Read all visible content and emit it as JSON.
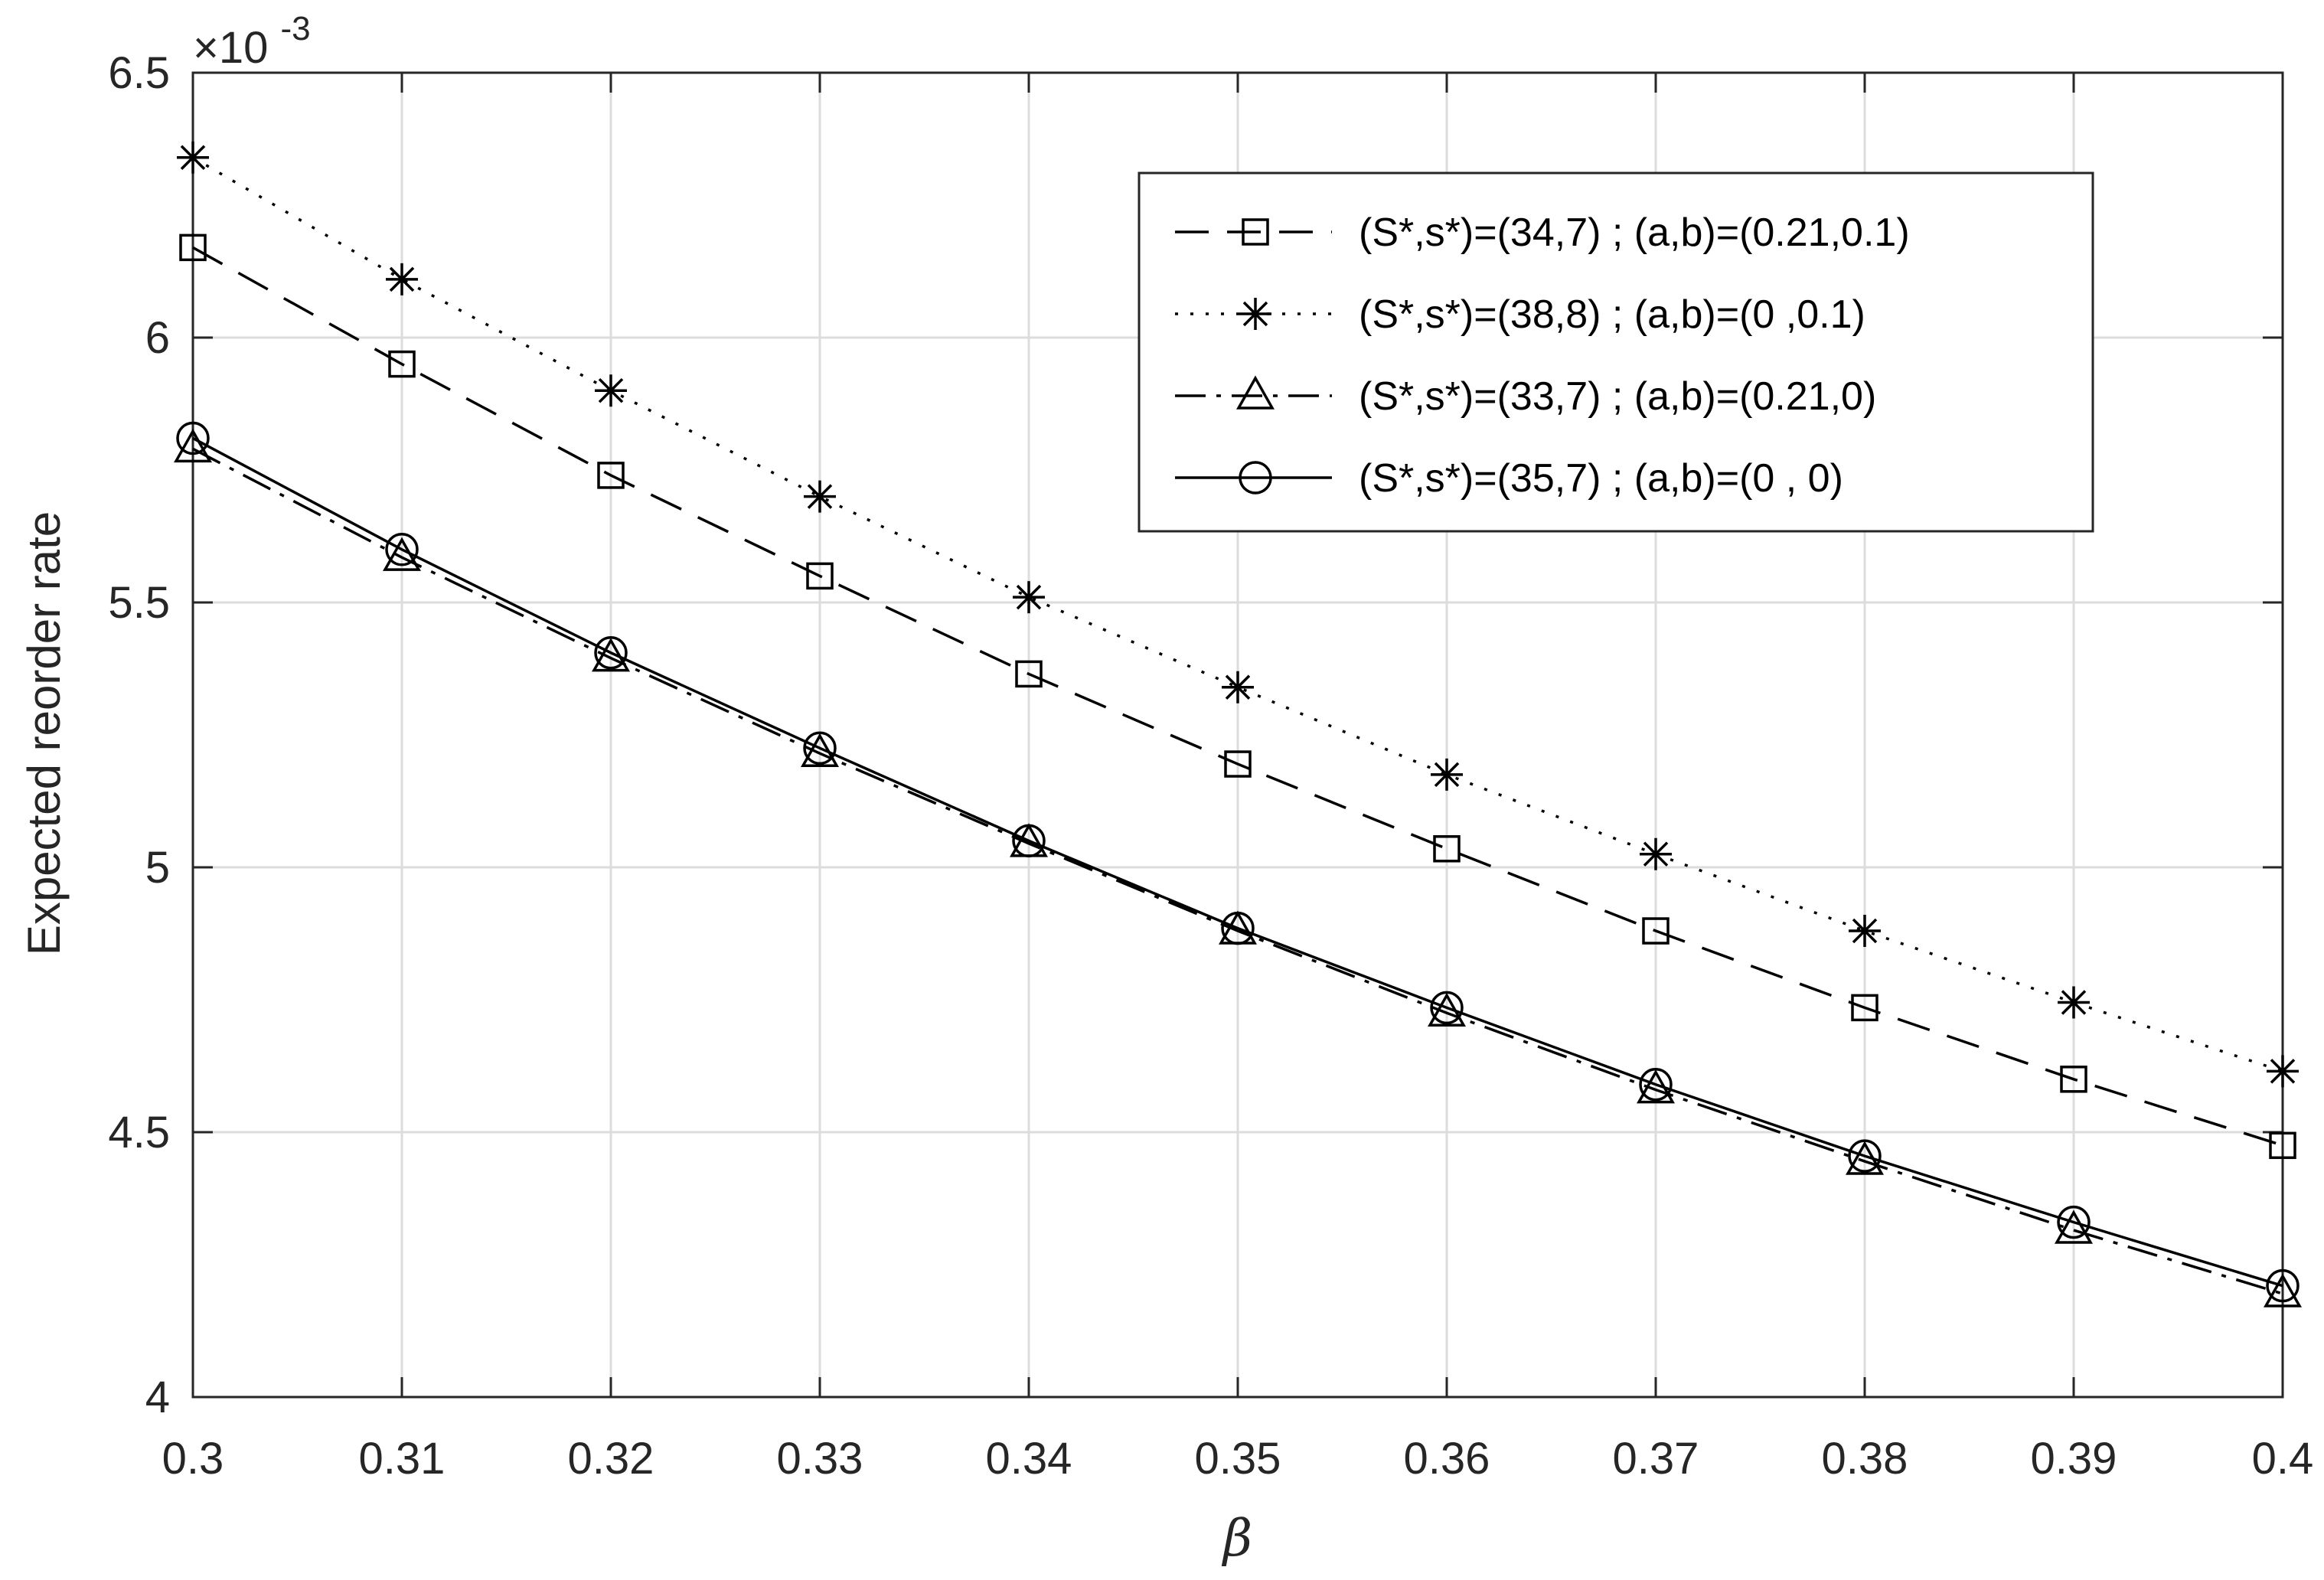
{
  "chart_data": {
    "type": "line",
    "xlabel": "β",
    "ylabel": "Expected reorder rate",
    "y_exponent_label": "×10",
    "y_exponent_power": "-3",
    "xlim": [
      0.3,
      0.4
    ],
    "ylim": [
      4.0,
      6.5
    ],
    "x_ticks": [
      0.3,
      0.31,
      0.32,
      0.33,
      0.34,
      0.35,
      0.36,
      0.37,
      0.38,
      0.39,
      0.4
    ],
    "x_tick_labels": [
      "0.3",
      "0.31",
      "0.32",
      "0.33",
      "0.34",
      "0.35",
      "0.36",
      "0.37",
      "0.38",
      "0.39",
      "0.4"
    ],
    "y_ticks": [
      4.0,
      4.5,
      5.0,
      5.5,
      6.0,
      6.5
    ],
    "y_tick_labels": [
      "4",
      "4.5",
      "5",
      "5.5",
      "6",
      "6.5"
    ],
    "grid": true,
    "legend_position": "top-right",
    "x": [
      0.3,
      0.31,
      0.32,
      0.33,
      0.34,
      0.35,
      0.36,
      0.37,
      0.38,
      0.39,
      0.4
    ],
    "series": [
      {
        "name": "(S*,s*)=(34,7) ; (a,b)=(0.21,0.1)",
        "marker": "square",
        "dash": "dashed",
        "values": [
          6.17,
          5.95,
          5.74,
          5.55,
          5.365,
          5.195,
          5.035,
          4.88,
          4.735,
          4.6,
          4.475
        ]
      },
      {
        "name": "(S*,s*)=(38,8) ; (a,b)=(0 ,0.1)",
        "marker": "asterisk",
        "dash": "dotted",
        "values": [
          6.34,
          6.11,
          5.9,
          5.7,
          5.51,
          5.34,
          5.175,
          5.025,
          4.88,
          4.745,
          4.615
        ]
      },
      {
        "name": "(S*,s*)=(33,7) ; (a,b)=(0.21,0)",
        "marker": "triangle",
        "dash": "dashdot",
        "values": [
          5.79,
          5.585,
          5.395,
          5.215,
          5.045,
          4.88,
          4.725,
          4.58,
          4.445,
          4.315,
          4.195
        ]
      },
      {
        "name": "(S*,s*)=(35,7) ; (a,b)=(0 , 0)",
        "marker": "circle",
        "dash": "solid",
        "values": [
          5.81,
          5.6,
          5.405,
          5.225,
          5.05,
          4.885,
          4.735,
          4.59,
          4.455,
          4.33,
          4.21
        ]
      }
    ]
  }
}
